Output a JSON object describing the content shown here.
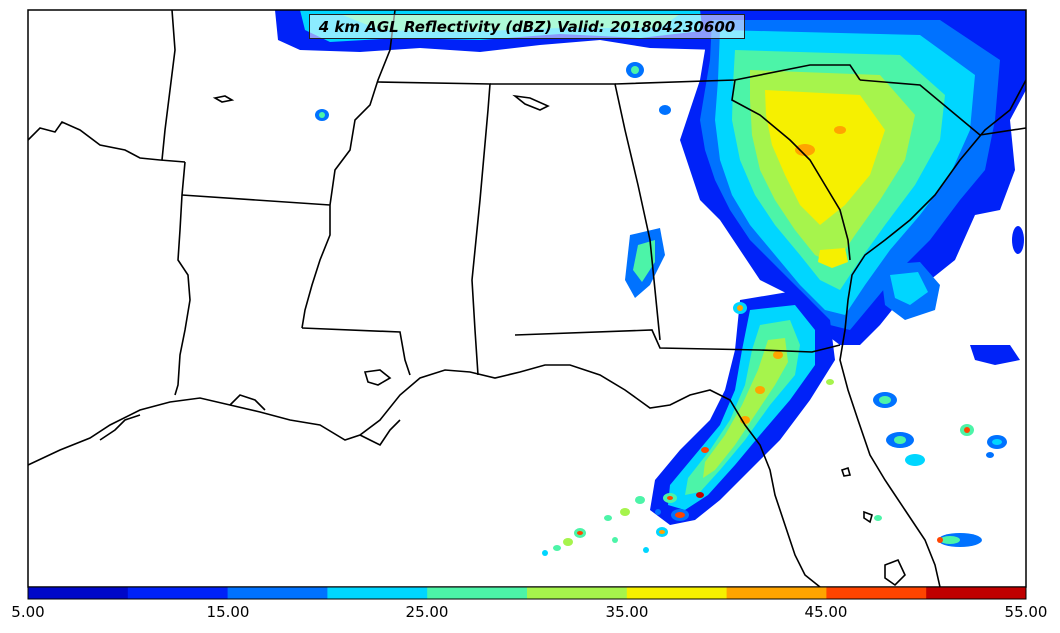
{
  "title": "4 km AGL Reflectivity (dBZ) Valid: 201804230600",
  "colorbar": {
    "labels": [
      "5.00",
      "15.00",
      "25.00",
      "35.00",
      "45.00",
      "55.00"
    ],
    "colors": [
      "#0008c8",
      "#0022f8",
      "#0072ff",
      "#00d6ff",
      "#4cf4a8",
      "#a6f44c",
      "#f6f000",
      "#ffa400",
      "#ff4400",
      "#c00000"
    ]
  },
  "map": {
    "land_color": "#ffffff",
    "boundary_color": "#000000"
  }
}
